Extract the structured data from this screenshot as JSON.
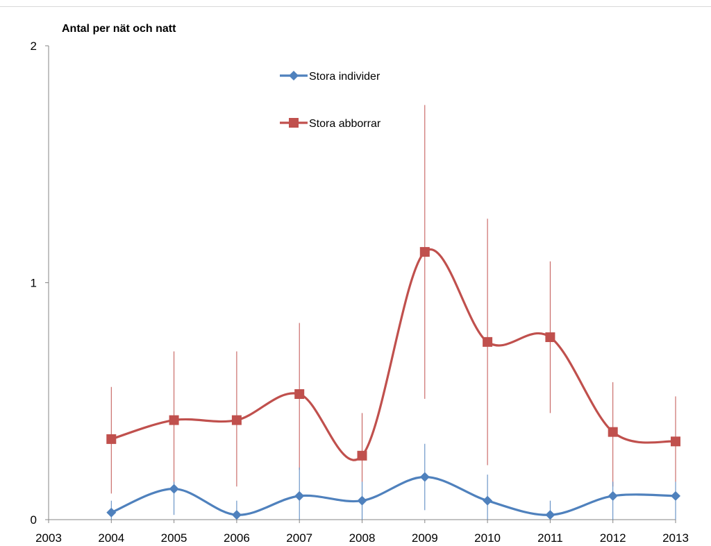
{
  "chart_data": {
    "type": "line",
    "title": "",
    "ylabel": "Antal per nät och natt",
    "xlabel": "",
    "x": [
      2004,
      2005,
      2006,
      2007,
      2008,
      2009,
      2010,
      2011,
      2012,
      2013
    ],
    "xlim": [
      2003,
      2013
    ],
    "x_ticks": [
      "2003",
      "2004",
      "2005",
      "2006",
      "2007",
      "2008",
      "2009",
      "2010",
      "2011",
      "2012",
      "2013"
    ],
    "ylim": [
      0,
      2
    ],
    "y_ticks": [
      "0",
      "1",
      "2"
    ],
    "grid": false,
    "smoothed": true,
    "legend_position": "top-center",
    "series": [
      {
        "name": "Stora individer",
        "color": "#4f81bd",
        "marker": "diamond",
        "values": [
          0.03,
          0.13,
          0.02,
          0.1,
          0.08,
          0.18,
          0.08,
          0.02,
          0.1,
          0.1
        ],
        "error_low": [
          0.0,
          0.02,
          0.0,
          0.0,
          0.0,
          0.04,
          0.0,
          0.0,
          0.0,
          0.0
        ],
        "error_high": [
          0.08,
          0.16,
          0.08,
          0.22,
          0.16,
          0.32,
          0.19,
          0.08,
          0.16,
          0.16
        ]
      },
      {
        "name": "Stora abborrar",
        "color": "#c0504d",
        "marker": "square",
        "values": [
          0.34,
          0.42,
          0.42,
          0.53,
          0.27,
          1.13,
          0.75,
          0.77,
          0.37,
          0.33
        ],
        "error_low": [
          0.11,
          0.12,
          0.14,
          0.21,
          0.08,
          0.51,
          0.23,
          0.45,
          0.14,
          0.12
        ],
        "error_high": [
          0.56,
          0.71,
          0.71,
          0.83,
          0.45,
          1.75,
          1.27,
          1.09,
          0.58,
          0.52
        ]
      }
    ]
  }
}
